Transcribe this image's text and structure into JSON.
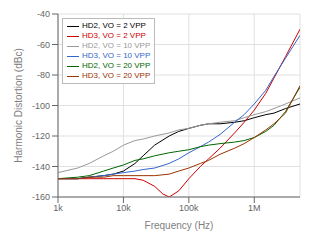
{
  "chart_data": {
    "type": "line",
    "xlabel": "Frequency (Hz)",
    "ylabel": "Harmonic Distortion (dBc)",
    "log": "x",
    "grid": true,
    "legend": "upper left",
    "xlim": [
      1000,
      5000000
    ],
    "ylim": [
      -160,
      -40
    ],
    "xticks": [
      {
        "value": 1000,
        "label": "1k"
      },
      {
        "value": 10000,
        "label": "10k"
      },
      {
        "value": 100000,
        "label": "100k"
      },
      {
        "value": 1000000,
        "label": "1M"
      }
    ],
    "yticks": [
      -160,
      -140,
      -120,
      -100,
      -80,
      -60,
      -40
    ],
    "series": [
      {
        "name": "HD2, VO = 2 VPP",
        "color": "#000000",
        "x": [
          1000,
          2000,
          3000,
          5000,
          7000,
          10000,
          15000,
          20000,
          30000,
          50000,
          70000,
          100000,
          150000,
          200000,
          300000,
          500000,
          700000,
          1000000,
          1500000,
          2000000,
          3000000,
          5000000
        ],
        "values": [
          -148,
          -148,
          -147,
          -146,
          -145,
          -143,
          -138,
          -133,
          -126,
          -120,
          -117,
          -115,
          -113,
          -112,
          -112,
          -111,
          -110,
          -108,
          -106,
          -105,
          -102,
          -99
        ]
      },
      {
        "name": "HD3, VO = 2 VPP",
        "color": "#cc0000",
        "x": [
          1000,
          2000,
          3000,
          5000,
          7000,
          10000,
          15000,
          20000,
          30000,
          40000,
          50000,
          70000,
          100000,
          150000,
          200000,
          300000,
          500000,
          700000,
          1000000,
          1500000,
          2000000,
          3000000,
          5000000
        ],
        "values": [
          -148,
          -148,
          -148,
          -148,
          -148,
          -148,
          -148,
          -149,
          -153,
          -158,
          -160,
          -156,
          -148,
          -140,
          -135,
          -128,
          -118,
          -111,
          -103,
          -92,
          -82,
          -68,
          -50
        ]
      },
      {
        "name": "HD2, VO = 10 VPP",
        "color": "#999999",
        "x": [
          1000,
          2000,
          3000,
          5000,
          7000,
          10000,
          15000,
          20000,
          30000,
          50000,
          70000,
          100000,
          150000,
          200000,
          300000,
          500000,
          700000,
          1000000,
          1500000,
          2000000,
          3000000,
          5000000
        ],
        "values": [
          -144,
          -141,
          -138,
          -133,
          -130,
          -126,
          -123,
          -122,
          -120,
          -118,
          -116,
          -115,
          -113,
          -112,
          -111,
          -110,
          -108,
          -106,
          -104,
          -102,
          -99,
          -95
        ]
      },
      {
        "name": "HD3, VO = 10 VPP",
        "color": "#3366cc",
        "x": [
          1000,
          2000,
          3000,
          5000,
          7000,
          10000,
          15000,
          20000,
          30000,
          50000,
          70000,
          100000,
          150000,
          200000,
          300000,
          500000,
          700000,
          1000000,
          1500000,
          2000000,
          3000000,
          5000000
        ],
        "values": [
          -148,
          -148,
          -147,
          -146,
          -145,
          -144,
          -143,
          -142,
          -141,
          -138,
          -135,
          -131,
          -127,
          -124,
          -119,
          -111,
          -106,
          -99,
          -90,
          -81,
          -69,
          -54
        ]
      },
      {
        "name": "HD2, VO = 20 VPP",
        "color": "#006600",
        "x": [
          1000,
          2000,
          3000,
          5000,
          7000,
          10000,
          15000,
          20000,
          30000,
          50000,
          70000,
          100000,
          150000,
          200000,
          300000,
          500000,
          700000,
          1000000,
          1500000,
          2000000,
          3000000,
          5000000
        ],
        "values": [
          -148,
          -147,
          -146,
          -143,
          -141,
          -139,
          -136,
          -135,
          -133,
          -131,
          -130,
          -129,
          -127,
          -126,
          -125,
          -124,
          -123,
          -121,
          -117,
          -113,
          -104,
          -88
        ]
      },
      {
        "name": "HD3, VO = 20 VPP",
        "color": "#993300",
        "x": [
          1000,
          2000,
          3000,
          5000,
          7000,
          10000,
          15000,
          20000,
          30000,
          50000,
          70000,
          100000,
          150000,
          200000,
          300000,
          500000,
          700000,
          1000000,
          1500000,
          2000000,
          3000000,
          5000000
        ],
        "values": [
          -148,
          -148,
          -147,
          -147,
          -146,
          -146,
          -146,
          -146,
          -146,
          -145,
          -143,
          -141,
          -138,
          -136,
          -132,
          -128,
          -125,
          -121,
          -116,
          -112,
          -105,
          -87
        ]
      }
    ]
  }
}
